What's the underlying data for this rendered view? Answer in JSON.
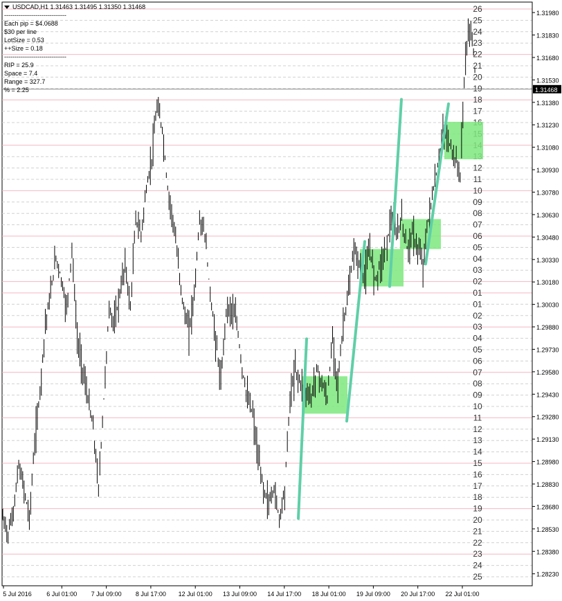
{
  "header": {
    "symbol_line": "USDCAD,H1  1.31463 1.31495 1.31350 1.31468",
    "dropdown_icon": "triangle-down-icon"
  },
  "info_panel": {
    "sep1": "------------------------------",
    "pip": "Each pip = $4.0688",
    "line": "$30 per line",
    "lot": "LotSize = 0.53",
    "plus": "++Size = 0.18",
    "sep2": "------------------------------",
    "rip": "RIP = 25.9",
    "space": "Space = 7.4",
    "range": "Range = 327.7",
    "pct": "% = 2.25"
  },
  "colors": {
    "background": "#ffffff",
    "candle": "#000000",
    "grid_pink": "#f4b6c2",
    "grid_dash": "#d0d0d0",
    "trend": "#5fcfa8",
    "box": "#7ee77e",
    "current_price_bg": "#000000"
  },
  "chart_data": {
    "type": "candlestick",
    "title": "USDCAD,H1",
    "ylim": [
      1.2815,
      1.3205
    ],
    "current_price": "1.31468",
    "price_axis_labels": [
      "1.31980",
      "1.31830",
      "1.31680",
      "1.31530",
      "1.31380",
      "1.31230",
      "1.31080",
      "1.30930",
      "1.30780",
      "1.30630",
      "1.30480",
      "1.30330",
      "1.30180",
      "1.30030",
      "1.29880",
      "1.29730",
      "1.29580",
      "1.29430",
      "1.29280",
      "1.29130",
      "1.28980",
      "1.28830",
      "1.28680",
      "1.28530",
      "1.28380",
      "1.28230"
    ],
    "level_labels": [
      "26",
      "25",
      "24",
      "23",
      "22",
      "21",
      "20",
      "19",
      "18",
      "17",
      "16",
      "15",
      "14",
      "13",
      "12",
      "11",
      "10",
      "09",
      "08",
      "07",
      "06",
      "05",
      "04",
      "03",
      "02",
      "01",
      "01",
      "02",
      "03",
      "04",
      "05",
      "06",
      "07",
      "08",
      "09",
      "10",
      "11",
      "12",
      "13",
      "14",
      "15",
      "16",
      "17",
      "18",
      "19",
      "20",
      "21",
      "22",
      "23",
      "24",
      "25"
    ],
    "time_labels": [
      "5 Jul 2016",
      "6 Jul 01:00",
      "7 Jul 09:00",
      "8 Jul 17:00",
      "12 Jul 01:00",
      "13 Jul 09:00",
      "14 Jul 17:00",
      "18 Jul 01:00",
      "19 Jul 09:00",
      "20 Jul 17:00",
      "22 Jul 01:00"
    ],
    "price_path": [
      [
        0,
        1.286
      ],
      [
        1,
        1.285
      ],
      [
        2,
        1.2865
      ],
      [
        3,
        1.2895
      ],
      [
        4,
        1.288
      ],
      [
        5,
        1.286
      ],
      [
        6,
        1.291
      ],
      [
        7,
        1.2945
      ],
      [
        8,
        1.299
      ],
      [
        9,
        1.301
      ],
      [
        10,
        1.3035
      ],
      [
        11,
        1.302
      ],
      [
        12,
        1.3
      ],
      [
        13,
        1.304
      ],
      [
        14,
        1.298
      ],
      [
        15,
        1.296
      ],
      [
        16,
        1.294
      ],
      [
        17,
        1.292
      ],
      [
        18,
        1.288
      ],
      [
        19,
        1.294
      ],
      [
        20,
        1.3
      ],
      [
        21,
        1.299
      ],
      [
        22,
        1.301
      ],
      [
        23,
        1.303
      ],
      [
        24,
        1.3
      ],
      [
        25,
        1.306
      ],
      [
        26,
        1.305
      ],
      [
        27,
        1.308
      ],
      [
        28,
        1.31
      ],
      [
        29,
        1.3135
      ],
      [
        30,
        1.312
      ],
      [
        31,
        1.308
      ],
      [
        32,
        1.306
      ],
      [
        33,
        1.303
      ],
      [
        34,
        1.3
      ],
      [
        35,
        1.2985
      ],
      [
        36,
        1.301
      ],
      [
        37,
        1.306
      ],
      [
        38,
        1.305
      ],
      [
        39,
        1.301
      ],
      [
        40,
        1.298
      ],
      [
        41,
        1.295
      ],
      [
        42,
        1.3
      ],
      [
        43,
        1.3
      ],
      [
        44,
        1.299
      ],
      [
        45,
        1.296
      ],
      [
        46,
        1.294
      ],
      [
        47,
        1.293
      ],
      [
        48,
        1.29
      ],
      [
        49,
        1.288
      ],
      [
        50,
        1.287
      ],
      [
        51,
        1.288
      ],
      [
        52,
        1.286
      ],
      [
        53,
        1.288
      ],
      [
        54,
        1.294
      ],
      [
        55,
        1.296
      ],
      [
        56,
        1.295
      ],
      [
        57,
        1.2945
      ],
      [
        58,
        1.294
      ],
      [
        59,
        1.296
      ],
      [
        60,
        1.295
      ],
      [
        61,
        1.294
      ],
      [
        62,
        1.298
      ],
      [
        63,
        1.295
      ],
      [
        64,
        1.299
      ],
      [
        65,
        1.301
      ],
      [
        66,
        1.304
      ],
      [
        67,
        1.303
      ],
      [
        68,
        1.302
      ],
      [
        69,
        1.304
      ],
      [
        70,
        1.302
      ],
      [
        71,
        1.303
      ],
      [
        72,
        1.304
      ],
      [
        73,
        1.306
      ],
      [
        74,
        1.305
      ],
      [
        75,
        1.306
      ],
      [
        76,
        1.304
      ],
      [
        77,
        1.305
      ],
      [
        78,
        1.304
      ],
      [
        79,
        1.303
      ],
      [
        80,
        1.306
      ],
      [
        81,
        1.308
      ],
      [
        82,
        1.31
      ],
      [
        83,
        1.312
      ],
      [
        84,
        1.311
      ],
      [
        85,
        1.31
      ],
      [
        86,
        1.309
      ],
      [
        87,
        1.317
      ],
      [
        88,
        1.319
      ],
      [
        89,
        1.315
      ]
    ],
    "trend_lines": [
      [
        1.286,
        1.298
      ],
      [
        1.2925,
        1.3045
      ],
      [
        1.3015,
        1.314
      ],
      [
        1.303,
        1.3137
      ]
    ],
    "boxes": [
      [
        1.293,
        1.2955
      ],
      [
        1.3015,
        1.304
      ],
      [
        1.304,
        1.306
      ],
      [
        1.31,
        1.3125
      ]
    ]
  }
}
